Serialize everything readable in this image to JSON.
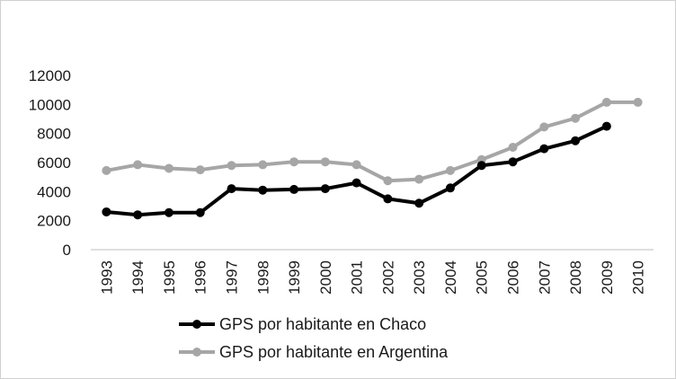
{
  "chart_data": {
    "type": "line",
    "x": [
      "1993",
      "1994",
      "1995",
      "1996",
      "1997",
      "1998",
      "1999",
      "2000",
      "2001",
      "2002",
      "2003",
      "2004",
      "2005",
      "2006",
      "2007",
      "2008",
      "2009",
      "2010"
    ],
    "ylim": [
      0,
      12000
    ],
    "yticks": [
      0,
      2000,
      4000,
      6000,
      8000,
      10000,
      12000
    ],
    "grid": false,
    "legend_position": "bottom",
    "series": [
      {
        "name": "GPS por habitante en Chaco",
        "color": "#000000",
        "values": [
          2600,
          2400,
          2550,
          2550,
          4200,
          4100,
          4150,
          4200,
          4600,
          3500,
          3200,
          4250,
          5800,
          6050,
          6950,
          7500,
          8500,
          null
        ]
      },
      {
        "name": "GPS por habitante en Argentina",
        "color": "#a6a6a6",
        "values": [
          5450,
          5850,
          5600,
          5500,
          5800,
          5850,
          6050,
          6050,
          5850,
          4750,
          4850,
          5450,
          6200,
          7050,
          8450,
          9050,
          10150,
          10150
        ]
      }
    ]
  }
}
